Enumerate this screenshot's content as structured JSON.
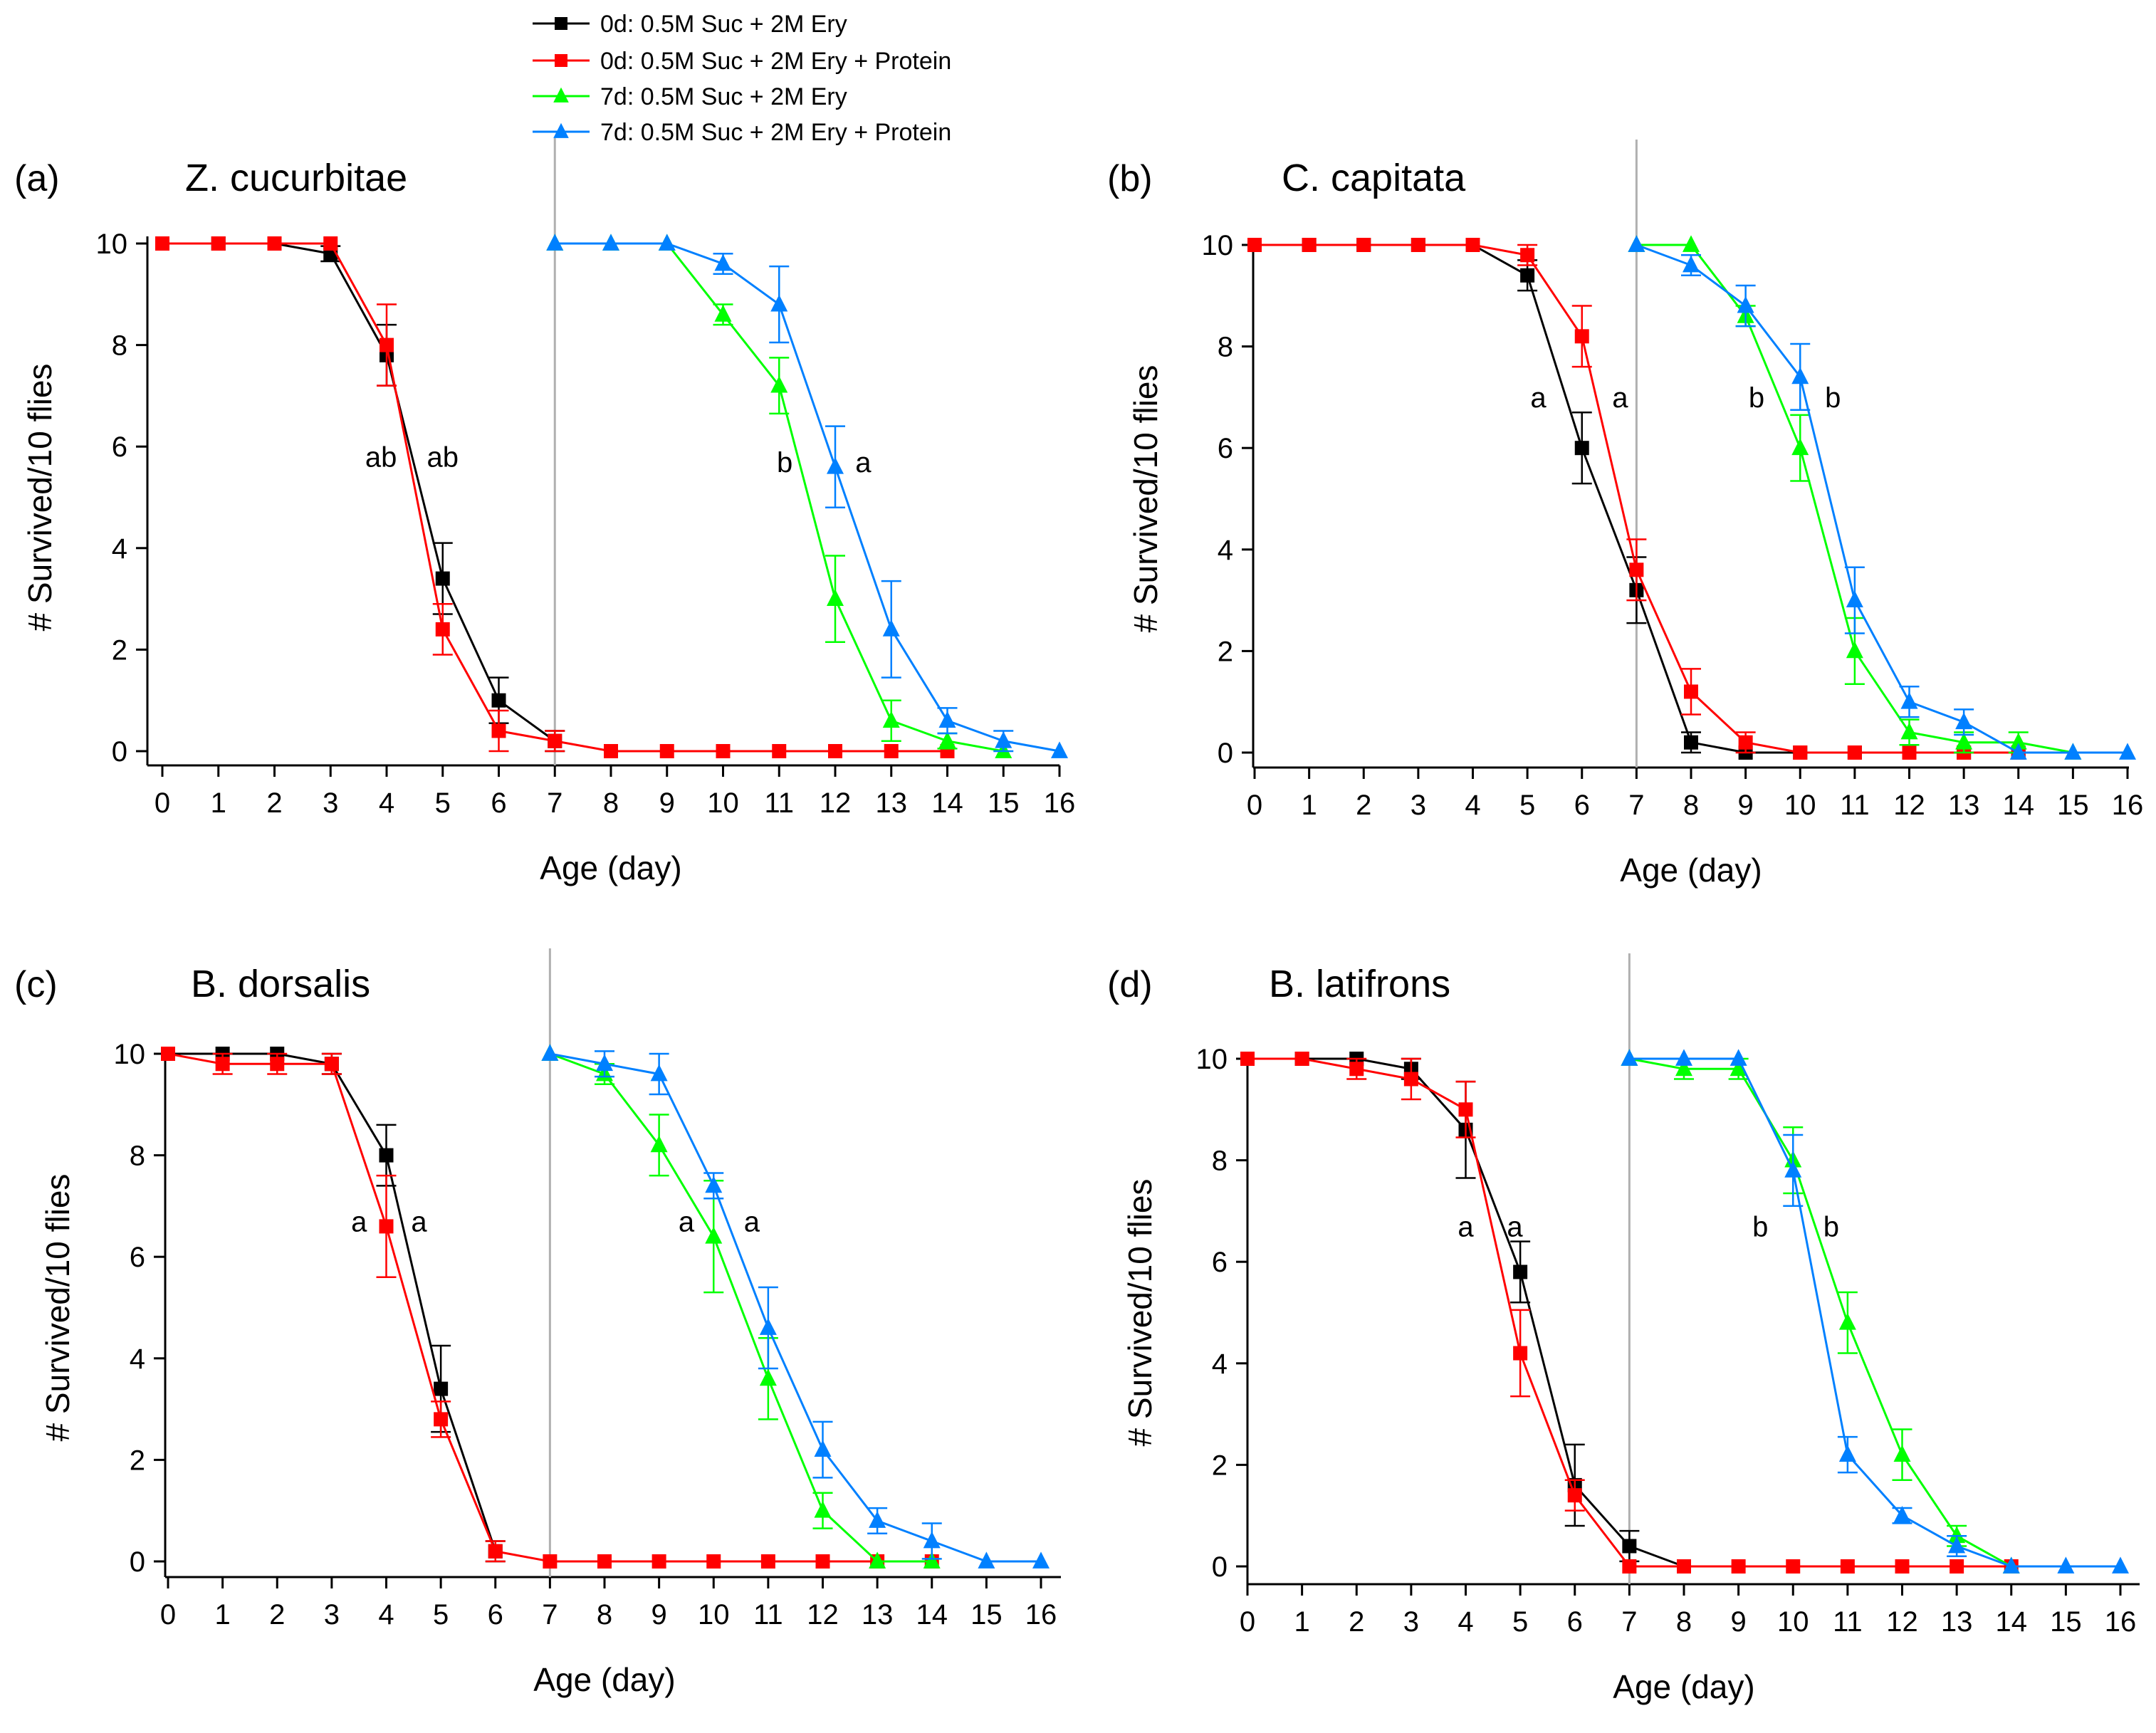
{
  "legend": [
    {
      "label": "0d: 0.5M Suc + 2M Ery",
      "color": "#000000",
      "marker": "square"
    },
    {
      "label": "0d: 0.5M Suc + 2M Ery + Protein",
      "color": "#ff0000",
      "marker": "square"
    },
    {
      "label": "7d: 0.5M Suc + 2M Ery",
      "color": "#00ff00",
      "marker": "triangle"
    },
    {
      "label": "7d: 0.5M Suc + 2M Ery + Protein",
      "color": "#0080ff",
      "marker": "triangle"
    }
  ],
  "chart_data": [
    {
      "type": "line",
      "panel_label": "(a)",
      "title": "Z. cucurbitae",
      "xlabel": "Age (day)",
      "ylabel": "# Survived/10 flies",
      "xlim": [
        0,
        16
      ],
      "ylim": [
        0,
        10
      ],
      "xticks": [
        0,
        1,
        2,
        3,
        4,
        5,
        6,
        7,
        8,
        9,
        10,
        11,
        12,
        13,
        14,
        15,
        16
      ],
      "yticks": [
        0,
        2,
        4,
        6,
        8,
        10
      ],
      "vline_x": 7,
      "series": [
        {
          "name": "0d: 0.5M Suc + 2M Ery",
          "color": "#000000",
          "marker": "square",
          "x": [
            0,
            1,
            2,
            3,
            4,
            5,
            6,
            7
          ],
          "y": [
            10,
            10,
            10,
            9.8,
            7.8,
            3.4,
            1.0,
            0.2
          ],
          "err": [
            0,
            0,
            0,
            0.15,
            0.6,
            0.7,
            0.45,
            0.2
          ]
        },
        {
          "name": "0d: 0.5M Suc + 2M Ery + Protein",
          "color": "#ff0000",
          "marker": "square",
          "x": [
            0,
            1,
            2,
            3,
            4,
            5,
            6,
            7,
            8,
            9,
            10,
            11,
            12,
            13,
            14
          ],
          "y": [
            10,
            10,
            10,
            10,
            8.0,
            2.4,
            0.4,
            0.2,
            0,
            0,
            0,
            0,
            0,
            0,
            0
          ],
          "err": [
            0,
            0,
            0,
            0,
            0.8,
            0.5,
            0.4,
            0.2,
            0,
            0,
            0,
            0,
            0,
            0,
            0
          ]
        },
        {
          "name": "7d: 0.5M Suc + 2M Ery",
          "color": "#00ff00",
          "marker": "triangle",
          "x": [
            7,
            8,
            9,
            10,
            11,
            12,
            13,
            14,
            15
          ],
          "y": [
            10,
            10,
            10,
            8.6,
            7.2,
            3.0,
            0.6,
            0.2,
            0
          ],
          "err": [
            0,
            0,
            0,
            0.2,
            0.55,
            0.85,
            0.4,
            0.15,
            0
          ]
        },
        {
          "name": "7d: 0.5M Suc + 2M Ery + Protein",
          "color": "#0080ff",
          "marker": "triangle",
          "x": [
            7,
            8,
            9,
            10,
            11,
            12,
            13,
            14,
            15,
            16
          ],
          "y": [
            10,
            10,
            10,
            9.6,
            8.8,
            5.6,
            2.4,
            0.6,
            0.2,
            0
          ],
          "err": [
            0,
            0,
            0,
            0.2,
            0.75,
            0.8,
            0.95,
            0.25,
            0.2,
            0
          ]
        }
      ],
      "annotations": [
        {
          "text": "ab",
          "x": 3.9,
          "y": 5.6
        },
        {
          "text": "ab",
          "x": 5.0,
          "y": 5.6
        },
        {
          "text": "b",
          "x": 11.1,
          "y": 5.5
        },
        {
          "text": "a",
          "x": 12.5,
          "y": 5.5
        }
      ]
    },
    {
      "type": "line",
      "panel_label": "(b)",
      "title": "C. capitata",
      "xlabel": "Age (day)",
      "ylabel": "# Survived/10 flies",
      "xlim": [
        0,
        16
      ],
      "ylim": [
        0,
        10
      ],
      "xticks": [
        0,
        1,
        2,
        3,
        4,
        5,
        6,
        7,
        8,
        9,
        10,
        11,
        12,
        13,
        14,
        15,
        16
      ],
      "yticks": [
        0,
        2,
        4,
        6,
        8,
        10
      ],
      "vline_x": 7,
      "series": [
        {
          "name": "0d: 0.5M Suc + 2M Ery",
          "color": "#000000",
          "marker": "square",
          "x": [
            0,
            1,
            2,
            3,
            4,
            5,
            6,
            7,
            8,
            9,
            10,
            11,
            12,
            13,
            14
          ],
          "y": [
            10,
            10,
            10,
            10,
            10,
            9.4,
            6.0,
            3.2,
            0.2,
            0,
            0,
            0,
            0,
            0,
            0
          ],
          "err": [
            0,
            0,
            0,
            0,
            0,
            0.3,
            0.7,
            0.65,
            0.2,
            0,
            0,
            0,
            0,
            0,
            0
          ]
        },
        {
          "name": "0d: 0.5M Suc + 2M Ery + Protein",
          "color": "#ff0000",
          "marker": "square",
          "x": [
            0,
            1,
            2,
            3,
            4,
            5,
            6,
            7,
            8,
            9,
            10,
            11,
            12,
            13,
            14
          ],
          "y": [
            10,
            10,
            10,
            10,
            10,
            9.8,
            8.2,
            3.6,
            1.2,
            0.2,
            0,
            0,
            0,
            0,
            0
          ],
          "err": [
            0,
            0,
            0,
            0,
            0,
            0.2,
            0.6,
            0.6,
            0.45,
            0.2,
            0,
            0,
            0,
            0,
            0
          ]
        },
        {
          "name": "7d: 0.5M Suc + 2M Ery",
          "color": "#00ff00",
          "marker": "triangle",
          "x": [
            7,
            8,
            9,
            10,
            11,
            12,
            13,
            14,
            15
          ],
          "y": [
            10,
            10,
            8.6,
            6.0,
            2.0,
            0.4,
            0.2,
            0.2,
            0
          ],
          "err": [
            0,
            0,
            0.2,
            0.65,
            0.65,
            0.25,
            0.2,
            0.2,
            0
          ]
        },
        {
          "name": "7d: 0.5M Suc + 2M Ery + Protein",
          "color": "#0080ff",
          "marker": "triangle",
          "x": [
            7,
            8,
            9,
            10,
            11,
            12,
            13,
            14,
            15,
            16
          ],
          "y": [
            10,
            9.6,
            8.8,
            7.4,
            3.0,
            1.0,
            0.6,
            0,
            0,
            0
          ],
          "err": [
            0,
            0.2,
            0.4,
            0.65,
            0.65,
            0.3,
            0.25,
            0,
            0,
            0
          ]
        }
      ],
      "annotations": [
        {
          "text": "a",
          "x": 5.2,
          "y": 6.8
        },
        {
          "text": "a",
          "x": 6.7,
          "y": 6.8
        },
        {
          "text": "b",
          "x": 9.2,
          "y": 6.8
        },
        {
          "text": "b",
          "x": 10.6,
          "y": 6.8
        }
      ]
    },
    {
      "type": "line",
      "panel_label": "(c)",
      "title": "B. dorsalis",
      "xlabel": "Age (day)",
      "ylabel": "# Survived/10 flies",
      "xlim": [
        0,
        16
      ],
      "ylim": [
        0,
        10
      ],
      "xticks": [
        0,
        1,
        2,
        3,
        4,
        5,
        6,
        7,
        8,
        9,
        10,
        11,
        12,
        13,
        14,
        15,
        16
      ],
      "yticks": [
        0,
        2,
        4,
        6,
        8,
        10
      ],
      "vline_x": 7,
      "series": [
        {
          "name": "0d: 0.5M Suc + 2M Ery",
          "color": "#000000",
          "marker": "square",
          "x": [
            0,
            1,
            2,
            3,
            4,
            5,
            6
          ],
          "y": [
            10,
            10,
            10,
            9.8,
            8.0,
            3.4,
            0.2
          ],
          "err": [
            0,
            0,
            0,
            0.2,
            0.6,
            0.85,
            0.2
          ]
        },
        {
          "name": "0d: 0.5M Suc + 2M Ery + Protein",
          "color": "#ff0000",
          "marker": "square",
          "x": [
            0,
            1,
            2,
            3,
            4,
            5,
            6,
            7,
            8,
            9,
            10,
            11,
            12,
            13,
            14
          ],
          "y": [
            10,
            9.8,
            9.8,
            9.8,
            6.6,
            2.8,
            0.2,
            0,
            0,
            0,
            0,
            0,
            0,
            0,
            0
          ],
          "err": [
            0,
            0.2,
            0.2,
            0.2,
            1.0,
            0.35,
            0.2,
            0,
            0,
            0,
            0,
            0,
            0,
            0,
            0
          ]
        },
        {
          "name": "7d: 0.5M Suc + 2M Ery",
          "color": "#00ff00",
          "marker": "triangle",
          "x": [
            7,
            8,
            9,
            10,
            11,
            12,
            13,
            14
          ],
          "y": [
            10,
            9.6,
            8.2,
            6.4,
            3.6,
            1.0,
            0,
            0
          ],
          "err": [
            0,
            0.2,
            0.6,
            1.1,
            0.8,
            0.35,
            0,
            0
          ]
        },
        {
          "name": "7d: 0.5M Suc + 2M Ery + Protein",
          "color": "#0080ff",
          "marker": "triangle",
          "x": [
            7,
            8,
            9,
            10,
            11,
            12,
            13,
            14,
            15,
            16
          ],
          "y": [
            10,
            9.8,
            9.6,
            7.4,
            4.6,
            2.2,
            0.8,
            0.4,
            0,
            0
          ],
          "err": [
            0,
            0.25,
            0.4,
            0.25,
            0.8,
            0.55,
            0.25,
            0.35,
            0,
            0
          ]
        }
      ],
      "annotations": [
        {
          "text": "a",
          "x": 3.5,
          "y": 6.5
        },
        {
          "text": "a",
          "x": 4.6,
          "y": 6.5
        },
        {
          "text": "a",
          "x": 9.5,
          "y": 6.5
        },
        {
          "text": "a",
          "x": 10.7,
          "y": 6.5
        }
      ]
    },
    {
      "type": "line",
      "panel_label": "(d)",
      "title": "B. latifrons",
      "xlabel": "Age (day)",
      "ylabel": "# Survived/10 flies",
      "xlim": [
        0,
        16
      ],
      "ylim": [
        0,
        10
      ],
      "xticks": [
        0,
        1,
        2,
        3,
        4,
        5,
        6,
        7,
        8,
        9,
        10,
        11,
        12,
        13,
        14,
        15,
        16
      ],
      "yticks": [
        0,
        2,
        4,
        6,
        8,
        10
      ],
      "vline_x": 7,
      "series": [
        {
          "name": "0d: 0.5M Suc + 2M Ery",
          "color": "#000000",
          "marker": "square",
          "x": [
            0,
            1,
            2,
            3,
            4,
            5,
            6,
            7,
            8
          ],
          "y": [
            10,
            10,
            10,
            9.8,
            8.6,
            5.8,
            1.6,
            0.4,
            0
          ],
          "err": [
            0,
            0,
            0,
            0.2,
            0.95,
            0.6,
            0.8,
            0.3,
            0
          ]
        },
        {
          "name": "0d: 0.5M Suc + 2M Ery + Protein",
          "color": "#ff0000",
          "marker": "square",
          "x": [
            0,
            1,
            2,
            3,
            4,
            5,
            6,
            7,
            8,
            9,
            10,
            11,
            12,
            13,
            14
          ],
          "y": [
            10,
            10,
            9.8,
            9.6,
            9.0,
            4.2,
            1.4,
            0,
            0,
            0,
            0,
            0,
            0,
            0,
            0
          ],
          "err": [
            0,
            0,
            0.2,
            0.4,
            0.55,
            0.85,
            0.3,
            0,
            0,
            0,
            0,
            0,
            0,
            0,
            0
          ]
        },
        {
          "name": "7d: 0.5M Suc + 2M Ery",
          "color": "#00ff00",
          "marker": "triangle",
          "x": [
            7,
            8,
            9,
            10,
            11,
            12,
            13,
            14
          ],
          "y": [
            10,
            9.8,
            9.8,
            8.0,
            4.8,
            2.2,
            0.6,
            0
          ],
          "err": [
            0,
            0.2,
            0.2,
            0.65,
            0.6,
            0.5,
            0.2,
            0
          ]
        },
        {
          "name": "7d: 0.5M Suc + 2M Ery + Protein",
          "color": "#0080ff",
          "marker": "triangle",
          "x": [
            7,
            8,
            9,
            10,
            11,
            12,
            13,
            14,
            15,
            16
          ],
          "y": [
            10,
            10,
            10,
            7.8,
            2.2,
            1.0,
            0.4,
            0,
            0,
            0
          ],
          "err": [
            0,
            0,
            0,
            0.7,
            0.35,
            0.15,
            0.2,
            0,
            0,
            0
          ]
        }
      ],
      "annotations": [
        {
          "text": "a",
          "x": 4.0,
          "y": 6.5
        },
        {
          "text": "a",
          "x": 4.9,
          "y": 6.5
        },
        {
          "text": "b",
          "x": 9.4,
          "y": 6.5
        },
        {
          "text": "b",
          "x": 10.7,
          "y": 6.5
        }
      ]
    }
  ]
}
